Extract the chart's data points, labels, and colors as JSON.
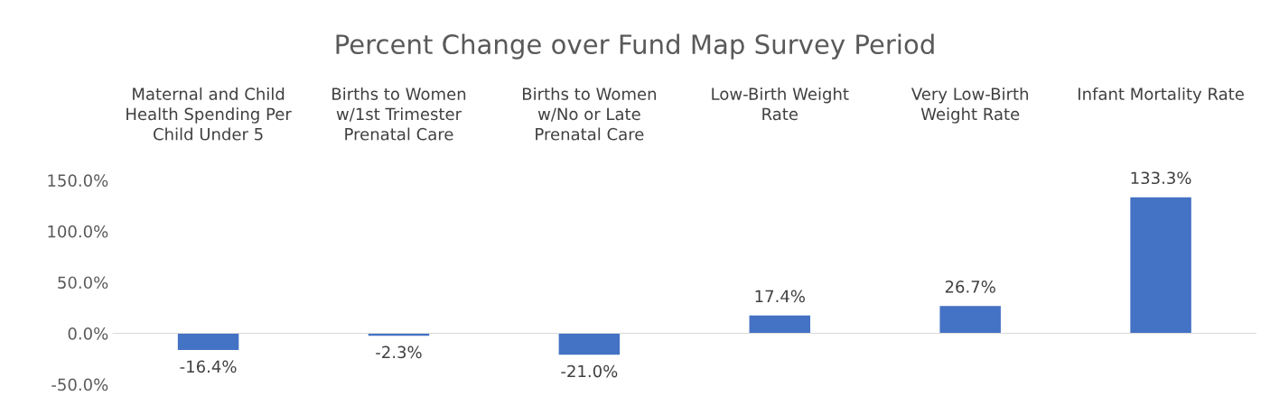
{
  "chart_data": {
    "type": "bar",
    "title": "Percent Change over Fund Map Survey Period",
    "categories": [
      "Maternal and Child\nHealth Spending Per\nChild Under 5",
      "Births to Women\nw/1st Trimester\nPrenatal Care",
      "Births to Women\nw/No or Late\nPrenatal Care",
      "Low-Birth Weight\nRate",
      "Very Low-Birth\nWeight Rate",
      "Infant Mortality Rate"
    ],
    "values": [
      -16.4,
      -2.3,
      -21.0,
      17.4,
      26.7,
      133.3
    ],
    "value_labels": [
      "-16.4%",
      "-2.3%",
      "-21.0%",
      "17.4%",
      "26.7%",
      "133.3%"
    ],
    "color": "#4472c4",
    "ylim": [
      -50,
      150
    ],
    "yticks": [
      {
        "value": -50,
        "label": "-50.0%"
      },
      {
        "value": 0,
        "label": "0.0%"
      },
      {
        "value": 50,
        "label": "50.0%"
      },
      {
        "value": 100,
        "label": "100.0%"
      },
      {
        "value": 150,
        "label": "150.0%"
      }
    ],
    "legend": false
  }
}
